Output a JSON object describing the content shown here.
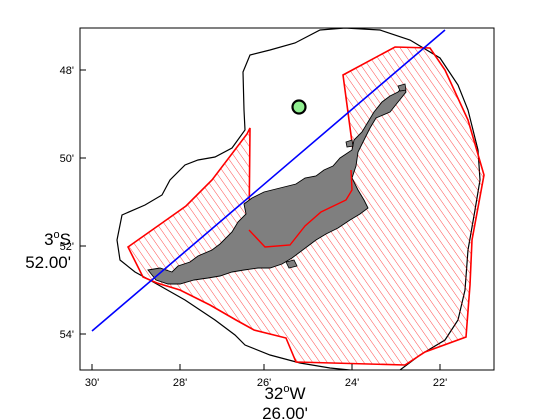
{
  "map": {
    "x_ticks": [
      "30'",
      "28'",
      "26'",
      "24'",
      "22'"
    ],
    "y_ticks": [
      "48'",
      "50'",
      "52'",
      "54'"
    ],
    "x_axis_title": {
      "deg": "32",
      "sup": "o",
      "hemi": "W",
      "sub": "26.00'"
    },
    "y_axis_title": {
      "deg": "3",
      "sup": "o",
      "hemi": "S",
      "sub": "52.00'"
    },
    "colors": {
      "frame": "#000000",
      "coastline": "#000000",
      "island_fill": "#7f7f7f",
      "hatch": "#ff0000",
      "boundary": "#ff0000",
      "transect": "#0000ff",
      "marker_fill": "#90ee90",
      "marker_edge": "#000000"
    },
    "layers": [
      "outer-contour",
      "hatched-zone",
      "island",
      "transect-line",
      "station-marker"
    ]
  }
}
